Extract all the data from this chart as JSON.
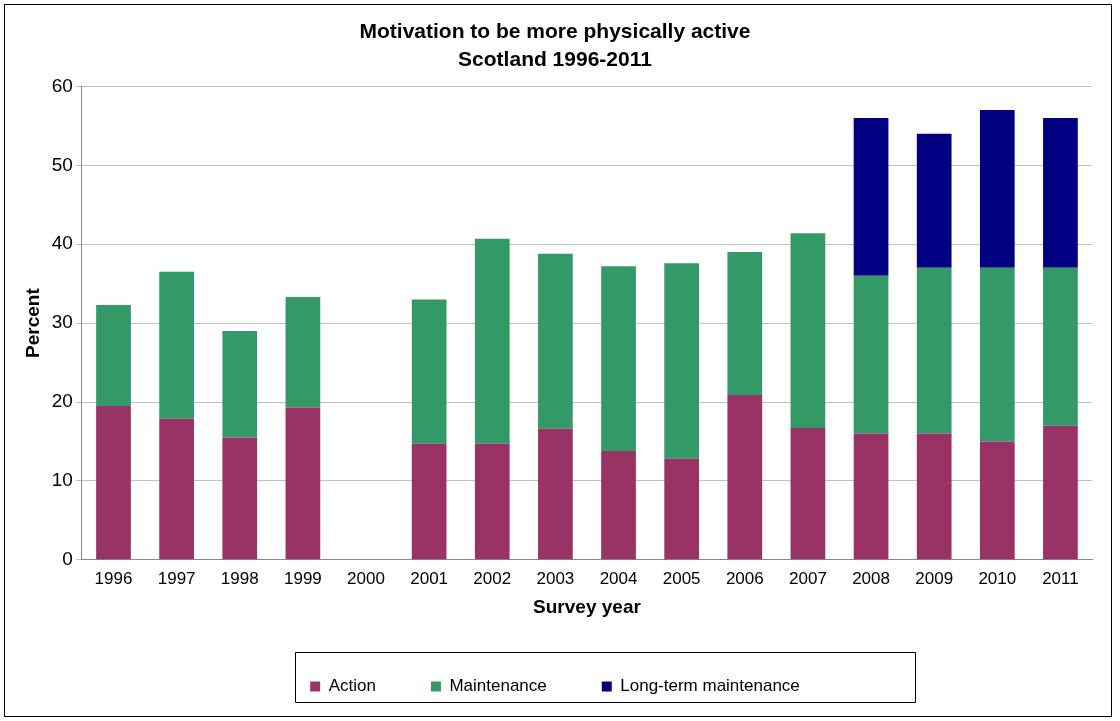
{
  "chart_data": {
    "type": "bar",
    "title": "Motivation to be more physically active",
    "subtitle": "Scotland 1996-2011",
    "xlabel": "Survey year",
    "ylabel": "Percent",
    "categories": [
      "1996",
      "1997",
      "1998",
      "1999",
      "2000",
      "2001",
      "2002",
      "2003",
      "2004",
      "2005",
      "2006",
      "2007",
      "2008",
      "2009",
      "2010",
      "2011"
    ],
    "stacked": true,
    "series": [
      {
        "name": "Action",
        "color": "#993366",
        "values": [
          19.5,
          17.9,
          15.5,
          19.3,
          null,
          14.7,
          14.7,
          16.6,
          13.8,
          12.8,
          20.9,
          16.7,
          16,
          16,
          15,
          17
        ]
      },
      {
        "name": "Maintenance",
        "color": "#339966",
        "values": [
          12.8,
          18.6,
          13.5,
          14.0,
          null,
          18.3,
          26.0,
          22.2,
          23.4,
          24.8,
          18.1,
          24.7,
          20,
          21,
          22,
          20
        ]
      },
      {
        "name": "Long-term maintenance",
        "color": "#000080",
        "values": [
          null,
          null,
          null,
          null,
          null,
          null,
          null,
          null,
          null,
          null,
          null,
          null,
          20,
          17,
          20,
          19
        ]
      }
    ],
    "ylim": [
      0,
      60
    ],
    "yticks": [
      0,
      10,
      20,
      30,
      40,
      50,
      60
    ],
    "grid": "y",
    "legend": "bottom"
  }
}
